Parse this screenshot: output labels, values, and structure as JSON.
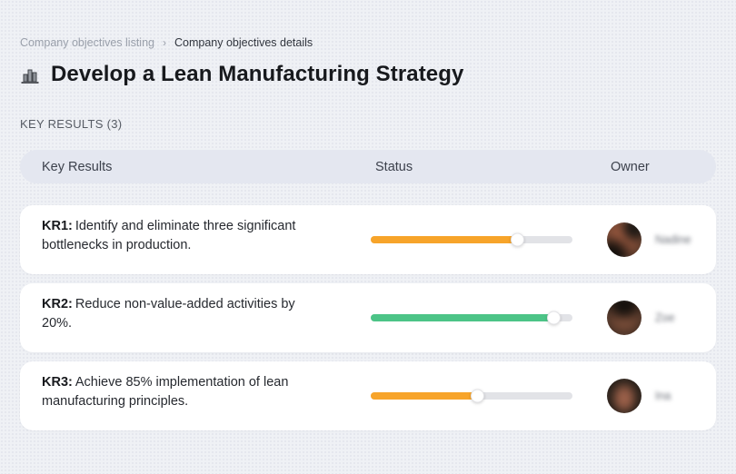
{
  "breadcrumb": {
    "previous": "Company objectives listing",
    "separator": "›",
    "current": "Company objectives details"
  },
  "header": {
    "icon": "buildings-icon",
    "title": "Develop a Lean Manufacturing Strategy"
  },
  "section": {
    "label": "KEY RESULTS (3)"
  },
  "table": {
    "columns": {
      "key_results": "Key Results",
      "status": "Status",
      "owner": "Owner"
    },
    "rows": [
      {
        "kr_label": "KR1:",
        "text": "Identify and eliminate three significant bottlenecks in production.",
        "progress_percent": 73,
        "bar_color": "#F7A42A",
        "owner": "Nadine"
      },
      {
        "kr_label": "KR2:",
        "text": "Reduce non-value-added activities by 20%.",
        "progress_percent": 91,
        "bar_color": "#4CC487",
        "owner": "Zoe"
      },
      {
        "kr_label": "KR3:",
        "text": "Achieve 85% implementation of lean manufacturing principles.",
        "progress_percent": 53,
        "bar_color": "#F7A42A",
        "owner": "Ina"
      }
    ]
  },
  "colors": {
    "background": "#EFF1F5",
    "header_bar": "#E4E7F0",
    "card": "#FFFFFF",
    "accent_orange": "#F7A42A",
    "accent_green": "#4CC487",
    "track": "#E2E3E7"
  }
}
